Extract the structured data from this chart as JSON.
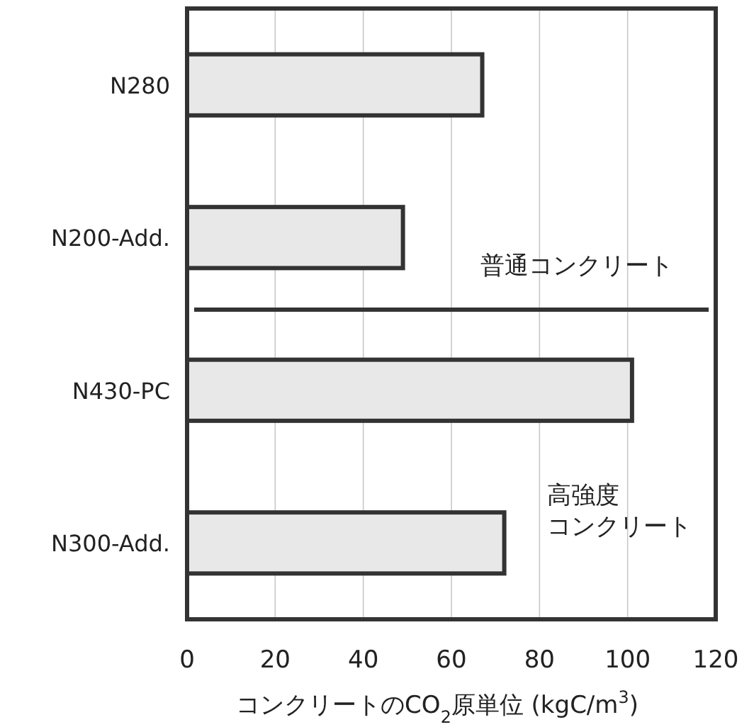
{
  "chart_data": {
    "type": "bar",
    "orientation": "horizontal",
    "categories": [
      "N280",
      "N200-Add.",
      "N430-PC",
      "N300-Add."
    ],
    "values": [
      67,
      49,
      101,
      72
    ],
    "color": "#e8e8e8",
    "xlabel": "コンクリートのCO$_{2}$原単位 (kgC/m$^{3}$)",
    "xlim": [
      0,
      120
    ],
    "xticks": [
      0,
      20,
      40,
      60,
      80,
      100,
      120
    ],
    "grid": "x",
    "annotations": [
      "普通コンクリート",
      "高強度",
      "コンクリート"
    ]
  }
}
